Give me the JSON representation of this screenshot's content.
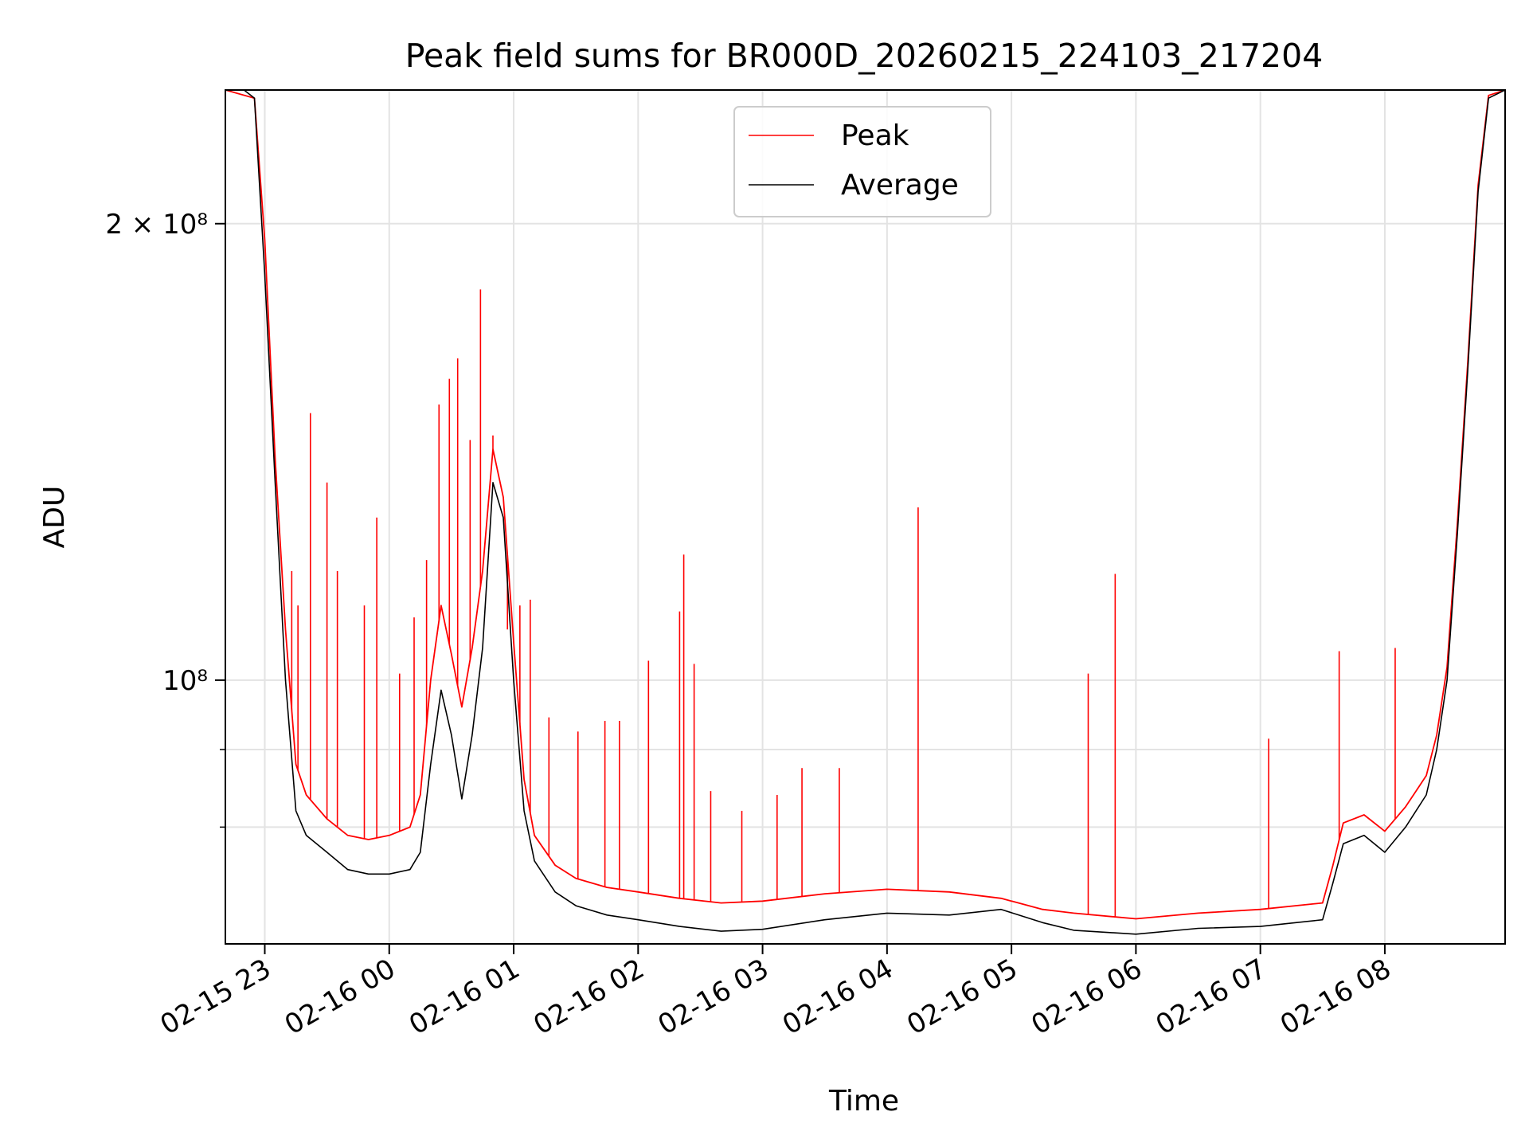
{
  "chart_data": {
    "type": "line",
    "title": "Peak field sums for BR000D_20260215_224103_217204",
    "xlabel": "Time",
    "ylabel": "ADU",
    "y_scale": "log",
    "ylim": [
      67000000,
      245000000
    ],
    "xlim": [
      "2026-02-15 22:41",
      "2026-02-16 08:58"
    ],
    "grid": true,
    "legend_position": "upper center",
    "x_ticks": [
      {
        "t": "2026-02-15 23:00",
        "label": "02-15 23"
      },
      {
        "t": "2026-02-16 00:00",
        "label": "02-16 00"
      },
      {
        "t": "2026-02-16 01:00",
        "label": "02-16 01"
      },
      {
        "t": "2026-02-16 02:00",
        "label": "02-16 02"
      },
      {
        "t": "2026-02-16 03:00",
        "label": "02-16 03"
      },
      {
        "t": "2026-02-16 04:00",
        "label": "02-16 04"
      },
      {
        "t": "2026-02-16 05:00",
        "label": "02-16 05"
      },
      {
        "t": "2026-02-16 06:00",
        "label": "02-16 06"
      },
      {
        "t": "2026-02-16 07:00",
        "label": "02-16 07"
      },
      {
        "t": "2026-02-16 08:00",
        "label": "02-16 08"
      }
    ],
    "y_ticks": [
      {
        "value": 100000000,
        "label": "10⁸"
      },
      {
        "value": 200000000,
        "label": "2 × 10⁸"
      }
    ],
    "y_minor_gridlines": [
      80000000,
      90000000
    ],
    "series": [
      {
        "name": "Average",
        "color": "#000000",
        "points": [
          [
            "2026-02-15 22:41",
            245000000
          ],
          [
            "2026-02-15 22:50",
            245000000
          ],
          [
            "2026-02-15 22:55",
            242000000
          ],
          [
            "2026-02-15 23:00",
            185000000
          ],
          [
            "2026-02-15 23:05",
            135000000
          ],
          [
            "2026-02-15 23:10",
            100000000
          ],
          [
            "2026-02-15 23:15",
            82000000
          ],
          [
            "2026-02-15 23:20",
            79000000
          ],
          [
            "2026-02-15 23:30",
            77000000
          ],
          [
            "2026-02-15 23:40",
            75000000
          ],
          [
            "2026-02-15 23:50",
            74500000
          ],
          [
            "2026-02-16 00:00",
            74500000
          ],
          [
            "2026-02-16 00:10",
            75000000
          ],
          [
            "2026-02-16 00:15",
            77000000
          ],
          [
            "2026-02-16 00:20",
            88000000
          ],
          [
            "2026-02-16 00:25",
            98500000
          ],
          [
            "2026-02-16 00:30",
            92000000
          ],
          [
            "2026-02-16 00:35",
            83500000
          ],
          [
            "2026-02-16 00:40",
            92000000
          ],
          [
            "2026-02-16 00:45",
            105000000
          ],
          [
            "2026-02-16 00:50",
            135000000
          ],
          [
            "2026-02-16 00:55",
            128000000
          ],
          [
            "2026-02-16 01:00",
            100000000
          ],
          [
            "2026-02-16 01:05",
            82000000
          ],
          [
            "2026-02-16 01:10",
            76000000
          ],
          [
            "2026-02-16 01:20",
            72500000
          ],
          [
            "2026-02-16 01:30",
            71000000
          ],
          [
            "2026-02-16 01:45",
            70000000
          ],
          [
            "2026-02-16 02:00",
            69500000
          ],
          [
            "2026-02-16 02:20",
            68800000
          ],
          [
            "2026-02-16 02:40",
            68300000
          ],
          [
            "2026-02-16 03:00",
            68500000
          ],
          [
            "2026-02-16 03:30",
            69500000
          ],
          [
            "2026-02-16 04:00",
            70200000
          ],
          [
            "2026-02-16 04:30",
            70000000
          ],
          [
            "2026-02-16 04:55",
            70600000
          ],
          [
            "2026-02-16 05:15",
            69200000
          ],
          [
            "2026-02-16 05:30",
            68400000
          ],
          [
            "2026-02-16 06:00",
            68000000
          ],
          [
            "2026-02-16 06:30",
            68600000
          ],
          [
            "2026-02-16 07:00",
            68800000
          ],
          [
            "2026-02-16 07:30",
            69500000
          ],
          [
            "2026-02-16 07:35",
            73500000
          ],
          [
            "2026-02-16 07:40",
            78000000
          ],
          [
            "2026-02-16 07:50",
            79000000
          ],
          [
            "2026-02-16 08:00",
            77000000
          ],
          [
            "2026-02-16 08:10",
            80000000
          ],
          [
            "2026-02-16 08:20",
            84000000
          ],
          [
            "2026-02-16 08:25",
            90000000
          ],
          [
            "2026-02-16 08:30",
            100000000
          ],
          [
            "2026-02-16 08:35",
            125000000
          ],
          [
            "2026-02-16 08:40",
            160000000
          ],
          [
            "2026-02-16 08:45",
            210000000
          ],
          [
            "2026-02-16 08:50",
            242000000
          ],
          [
            "2026-02-16 08:58",
            245000000
          ]
        ]
      },
      {
        "name": "Peak",
        "color": "#ff0000",
        "points": [
          [
            "2026-02-15 22:41",
            245000000
          ],
          [
            "2026-02-15 22:55",
            242000000
          ],
          [
            "2026-02-15 23:00",
            195000000
          ],
          [
            "2026-02-15 23:05",
            140000000
          ],
          [
            "2026-02-15 23:10",
            108000000
          ],
          [
            "2026-02-15 23:15",
            88000000
          ],
          [
            "2026-02-15 23:20",
            84000000
          ],
          [
            "2026-02-15 23:30",
            81000000
          ],
          [
            "2026-02-15 23:40",
            79000000
          ],
          [
            "2026-02-15 23:50",
            78500000
          ],
          [
            "2026-02-16 00:00",
            79000000
          ],
          [
            "2026-02-16 00:10",
            80000000
          ],
          [
            "2026-02-16 00:15",
            84000000
          ],
          [
            "2026-02-16 00:20",
            100000000
          ],
          [
            "2026-02-16 00:25",
            112000000
          ],
          [
            "2026-02-16 00:30",
            104000000
          ],
          [
            "2026-02-16 00:35",
            96000000
          ],
          [
            "2026-02-16 00:40",
            105000000
          ],
          [
            "2026-02-16 00:45",
            118000000
          ],
          [
            "2026-02-16 00:50",
            142000000
          ],
          [
            "2026-02-16 00:55",
            132000000
          ],
          [
            "2026-02-16 01:00",
            106000000
          ],
          [
            "2026-02-16 01:05",
            86000000
          ],
          [
            "2026-02-16 01:10",
            79000000
          ],
          [
            "2026-02-16 01:20",
            75500000
          ],
          [
            "2026-02-16 01:30",
            74000000
          ],
          [
            "2026-02-16 01:45",
            73000000
          ],
          [
            "2026-02-16 02:00",
            72500000
          ],
          [
            "2026-02-16 02:20",
            71800000
          ],
          [
            "2026-02-16 02:40",
            71300000
          ],
          [
            "2026-02-16 03:00",
            71500000
          ],
          [
            "2026-02-16 03:30",
            72300000
          ],
          [
            "2026-02-16 04:00",
            72800000
          ],
          [
            "2026-02-16 04:30",
            72500000
          ],
          [
            "2026-02-16 04:55",
            71800000
          ],
          [
            "2026-02-16 05:15",
            70600000
          ],
          [
            "2026-02-16 05:30",
            70200000
          ],
          [
            "2026-02-16 06:00",
            69600000
          ],
          [
            "2026-02-16 06:30",
            70200000
          ],
          [
            "2026-02-16 07:00",
            70600000
          ],
          [
            "2026-02-16 07:30",
            71300000
          ],
          [
            "2026-02-16 07:35",
            75500000
          ],
          [
            "2026-02-16 07:40",
            80500000
          ],
          [
            "2026-02-16 07:50",
            81500000
          ],
          [
            "2026-02-16 08:00",
            79500000
          ],
          [
            "2026-02-16 08:10",
            82500000
          ],
          [
            "2026-02-16 08:20",
            86500000
          ],
          [
            "2026-02-16 08:25",
            92000000
          ],
          [
            "2026-02-16 08:30",
            102000000
          ],
          [
            "2026-02-16 08:35",
            127000000
          ],
          [
            "2026-02-16 08:40",
            162000000
          ],
          [
            "2026-02-16 08:45",
            212000000
          ],
          [
            "2026-02-16 08:50",
            243000000
          ],
          [
            "2026-02-16 08:58",
            245000000
          ]
        ],
        "spikes": [
          [
            "2026-02-15 23:13",
            118000000
          ],
          [
            "2026-02-15 23:16",
            112000000
          ],
          [
            "2026-02-15 23:22",
            150000000
          ],
          [
            "2026-02-15 23:30",
            135000000
          ],
          [
            "2026-02-15 23:35",
            118000000
          ],
          [
            "2026-02-15 23:48",
            112000000
          ],
          [
            "2026-02-15 23:54",
            128000000
          ],
          [
            "2026-02-16 00:05",
            101000000
          ],
          [
            "2026-02-16 00:12",
            110000000
          ],
          [
            "2026-02-16 00:18",
            120000000
          ],
          [
            "2026-02-16 00:24",
            152000000
          ],
          [
            "2026-02-16 00:29",
            158000000
          ],
          [
            "2026-02-16 00:33",
            163000000
          ],
          [
            "2026-02-16 00:39",
            144000000
          ],
          [
            "2026-02-16 00:44",
            181000000
          ],
          [
            "2026-02-16 00:50",
            145000000
          ],
          [
            "2026-02-16 00:57",
            108000000
          ],
          [
            "2026-02-16 01:03",
            112000000
          ],
          [
            "2026-02-16 01:08",
            113000000
          ],
          [
            "2026-02-16 01:17",
            94500000
          ],
          [
            "2026-02-16 01:31",
            92500000
          ],
          [
            "2026-02-16 01:44",
            94000000
          ],
          [
            "2026-02-16 01:51",
            94000000
          ],
          [
            "2026-02-16 02:05",
            103000000
          ],
          [
            "2026-02-16 02:20",
            111000000
          ],
          [
            "2026-02-16 02:22",
            121000000
          ],
          [
            "2026-02-16 02:27",
            102500000
          ],
          [
            "2026-02-16 02:35",
            84500000
          ],
          [
            "2026-02-16 02:50",
            82000000
          ],
          [
            "2026-02-16 03:07",
            84000000
          ],
          [
            "2026-02-16 03:19",
            87500000
          ],
          [
            "2026-02-16 03:37",
            87500000
          ],
          [
            "2026-02-16 04:15",
            130000000
          ],
          [
            "2026-02-16 05:37",
            101000000
          ],
          [
            "2026-02-16 05:50",
            117500000
          ],
          [
            "2026-02-16 07:04",
            91500000
          ],
          [
            "2026-02-16 07:38",
            104500000
          ],
          [
            "2026-02-16 08:05",
            105000000
          ]
        ]
      }
    ]
  }
}
